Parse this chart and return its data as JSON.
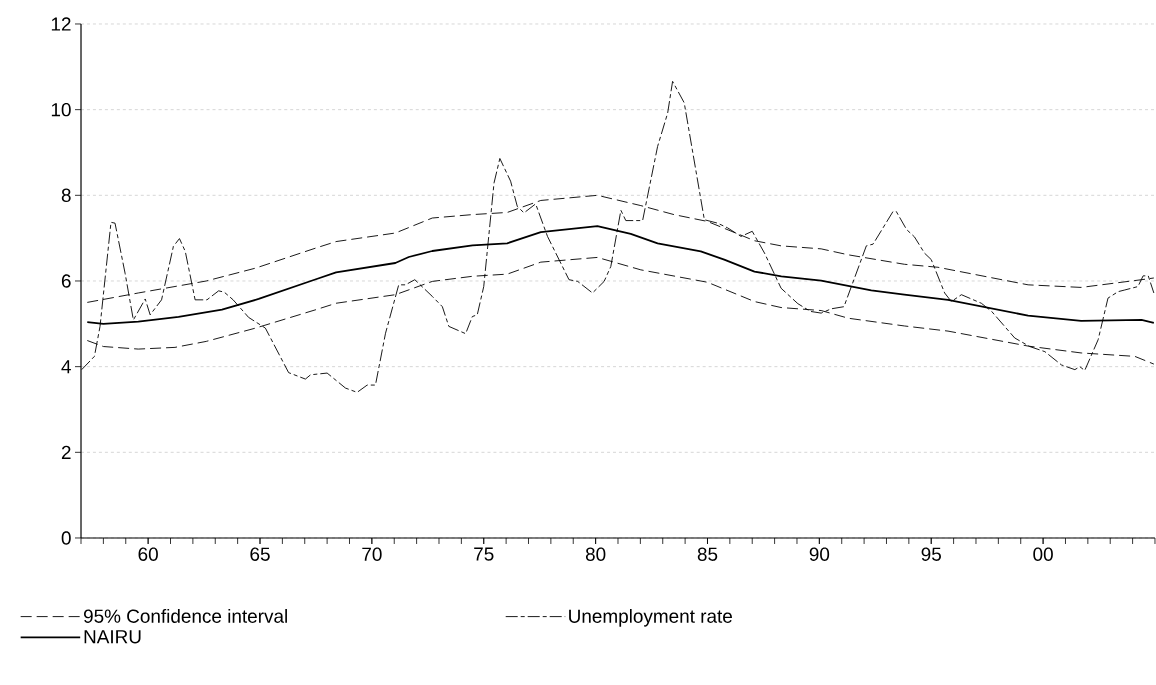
{
  "chart_data": {
    "type": "line",
    "xlim": [
      1957,
      2005
    ],
    "ylim": [
      0,
      12
    ],
    "xticks": [
      {
        "value": 1960,
        "label": "60"
      },
      {
        "value": 1965,
        "label": "65"
      },
      {
        "value": 1970,
        "label": "70"
      },
      {
        "value": 1975,
        "label": "75"
      },
      {
        "value": 1980,
        "label": "80"
      },
      {
        "value": 1985,
        "label": "85"
      },
      {
        "value": 1990,
        "label": "90"
      },
      {
        "value": 1995,
        "label": "95"
      },
      {
        "value": 2000,
        "label": "00"
      }
    ],
    "yticks": [
      0,
      2,
      4,
      6,
      8,
      10,
      12
    ],
    "grid": "y",
    "legend": "bottom",
    "series": [
      {
        "name": "95% Confidence interval",
        "color": "#000000",
        "line_style": "dashed",
        "x": [
          1957.28,
          1959.56,
          1962.6,
          1964.8,
          1967.5,
          1968.4,
          1971.05,
          1972.7,
          1974.5,
          1976.05,
          1977.55,
          1980.08,
          1982.02,
          1983.5,
          1985.0,
          1987.1,
          1988.29,
          1990.08,
          1991.3,
          1993.8,
          1995.3,
          1999.33,
          2001.7,
          2004.4,
          2004.95
        ],
        "values": [
          5.5,
          5.72,
          6.0,
          6.3,
          6.77,
          6.92,
          7.12,
          7.47,
          7.55,
          7.6,
          7.88,
          8.0,
          7.76,
          7.55,
          7.39,
          6.94,
          6.82,
          6.75,
          6.61,
          6.39,
          6.32,
          5.91,
          5.85,
          6.03,
          6.07
        ]
      },
      {
        "name": "Unemployment rate",
        "color": "#000000",
        "line_style": "dashed",
        "x": [
          1957.03,
          1957.6,
          1957.85,
          1958.34,
          1958.52,
          1958.97,
          1959.34,
          1959.87,
          1960.09,
          1960.6,
          1961.13,
          1961.4,
          1961.66,
          1962.1,
          1962.63,
          1963.15,
          1963.4,
          1963.8,
          1964.49,
          1965.24,
          1966.28,
          1967.03,
          1967.26,
          1968.0,
          1968.82,
          1969.34,
          1969.79,
          1970.16,
          1970.61,
          1971.2,
          1971.5,
          1971.92,
          1972.7,
          1973.15,
          1973.44,
          1974.19,
          1974.49,
          1974.71,
          1975.0,
          1975.46,
          1975.72,
          1976.2,
          1976.5,
          1976.8,
          1977.32,
          1977.85,
          1978.81,
          1979.2,
          1979.86,
          1980.38,
          1980.68,
          1981.13,
          1981.35,
          1982.1,
          1982.77,
          1983.22,
          1983.44,
          1983.96,
          1984.86,
          1985.45,
          1985.9,
          1986.5,
          1987.0,
          1987.55,
          1988.29,
          1989.04,
          1989.6,
          1990.08,
          1990.53,
          1991.1,
          1992.1,
          1992.4,
          1993.29,
          1993.44,
          1993.9,
          1994.25,
          1994.7,
          1995.0,
          1995.6,
          1995.9,
          1996.35,
          1997.24,
          1997.7,
          1998.73,
          1999.4,
          2000.08,
          2000.82,
          2001.42,
          2001.64,
          2001.86,
          2002.46,
          2002.9,
          2003.35,
          2003.65,
          2004.24,
          2004.47,
          2004.7,
          2004.95
        ],
        "values": [
          3.93,
          4.24,
          4.94,
          7.37,
          7.35,
          6.18,
          5.09,
          5.58,
          5.21,
          5.56,
          6.81,
          6.99,
          6.69,
          5.56,
          5.56,
          5.77,
          5.74,
          5.56,
          5.15,
          4.9,
          3.86,
          3.71,
          3.81,
          3.85,
          3.5,
          3.4,
          3.57,
          3.57,
          4.78,
          5.91,
          5.91,
          6.03,
          5.64,
          5.4,
          4.94,
          4.77,
          5.17,
          5.21,
          5.87,
          8.29,
          8.86,
          8.33,
          7.74,
          7.59,
          7.8,
          7.04,
          6.03,
          5.99,
          5.72,
          5.99,
          6.34,
          7.65,
          7.41,
          7.41,
          9.14,
          9.92,
          10.66,
          10.16,
          7.43,
          7.35,
          7.24,
          7.04,
          7.16,
          6.65,
          5.83,
          5.47,
          5.29,
          5.25,
          5.35,
          5.4,
          6.82,
          6.86,
          7.62,
          7.62,
          7.2,
          7.03,
          6.65,
          6.5,
          5.72,
          5.52,
          5.68,
          5.48,
          5.29,
          4.67,
          4.47,
          4.35,
          4.04,
          3.93,
          4.0,
          3.91,
          4.63,
          5.6,
          5.75,
          5.79,
          5.87,
          6.12,
          6.12,
          5.72
        ]
      },
      {
        "name": "NAIRU",
        "color": "#000000",
        "line_style": "solid",
        "x": [
          1957.28,
          1958.0,
          1959.56,
          1961.36,
          1963.3,
          1964.94,
          1967.5,
          1968.4,
          1971.05,
          1971.65,
          1972.7,
          1974.5,
          1976.05,
          1977.55,
          1980.08,
          1981.57,
          1982.77,
          1984.7,
          1985.75,
          1987.1,
          1988.3,
          1990.08,
          1992.32,
          1993.8,
          1995.75,
          1999.33,
          2001.7,
          2004.4,
          2004.95
        ],
        "values": [
          5.04,
          5.0,
          5.05,
          5.16,
          5.33,
          5.58,
          6.04,
          6.2,
          6.42,
          6.56,
          6.7,
          6.83,
          6.88,
          7.14,
          7.28,
          7.1,
          6.88,
          6.69,
          6.5,
          6.22,
          6.11,
          6.01,
          5.78,
          5.68,
          5.56,
          5.19,
          5.07,
          5.09,
          5.02
        ]
      },
      {
        "color": "#000000",
        "line_style": "dashed",
        "x": [
          1957.28,
          1958.0,
          1959.56,
          1961.2,
          1962.6,
          1964.8,
          1967.5,
          1968.4,
          1971.05,
          1972.7,
          1974.5,
          1976.05,
          1977.55,
          1980.08,
          1982.02,
          1985.0,
          1987.1,
          1988.29,
          1990.08,
          1991.3,
          1993.8,
          1995.75,
          1999.33,
          2001.7,
          2004.1,
          2004.95
        ],
        "values": [
          4.61,
          4.47,
          4.41,
          4.45,
          4.59,
          4.9,
          5.33,
          5.48,
          5.68,
          5.99,
          6.11,
          6.16,
          6.44,
          6.55,
          6.26,
          5.97,
          5.52,
          5.38,
          5.31,
          5.13,
          4.95,
          4.83,
          4.48,
          4.32,
          4.24,
          4.06
        ]
      }
    ]
  }
}
